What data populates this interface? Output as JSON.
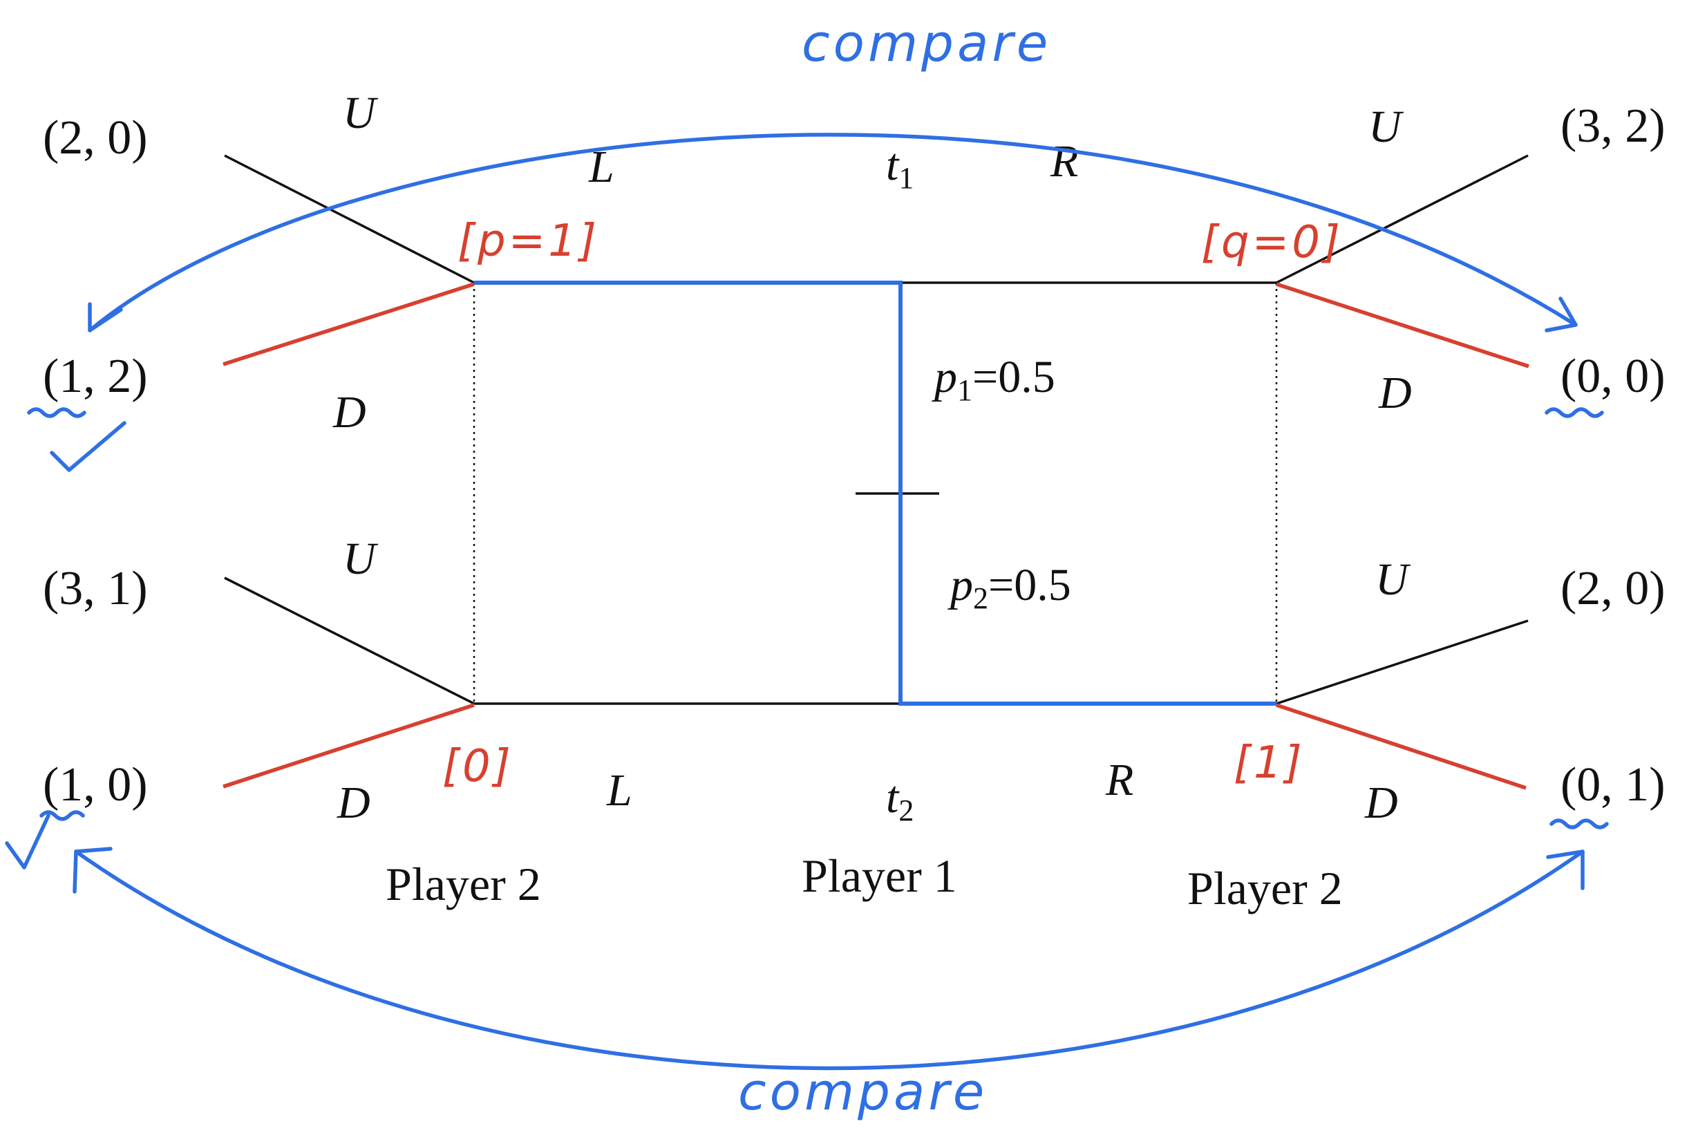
{
  "colors": {
    "tree": "#111111",
    "equilibrium_path": "#2f6fe4",
    "best_response": "#d7402f",
    "annotation": "#2f6fe4"
  },
  "diagram": {
    "payoffs": {
      "top_left_up": "(2, 0)",
      "top_left_down": "(1, 2)",
      "bottom_left_up": "(3, 1)",
      "bottom_left_down": "(1, 0)",
      "top_right_up": "(3, 2)",
      "top_right_down": "(0, 0)",
      "bottom_right_up": "(2, 0)",
      "bottom_right_down": "(0, 1)"
    },
    "actions": {
      "tl_U": "U",
      "tl_D": "D",
      "bl_U": "U",
      "bl_D": "D",
      "tr_U": "U",
      "tr_D": "D",
      "br_U": "U",
      "br_D": "D",
      "top_L": "L",
      "top_R": "R",
      "bottom_L": "L",
      "bottom_R": "R"
    },
    "types": {
      "t1_base": "t",
      "t1_sub": "1",
      "t2_base": "t",
      "t2_sub": "2"
    },
    "probabilities": {
      "p1_base": "p",
      "p1_sub": "1",
      "p1_value": "=0.5",
      "p2_base": "p",
      "p2_sub": "2",
      "p2_value": "=0.5"
    },
    "players": {
      "left": "Player 2",
      "center": "Player 1",
      "right": "Player 2"
    }
  },
  "annotations": {
    "belief_left_top": "[p=1]",
    "belief_right_top": "[q=0]",
    "belief_left_bottom": "[0]",
    "belief_right_bottom": "[1]",
    "compare_top": "compare",
    "compare_bottom": "compare"
  }
}
